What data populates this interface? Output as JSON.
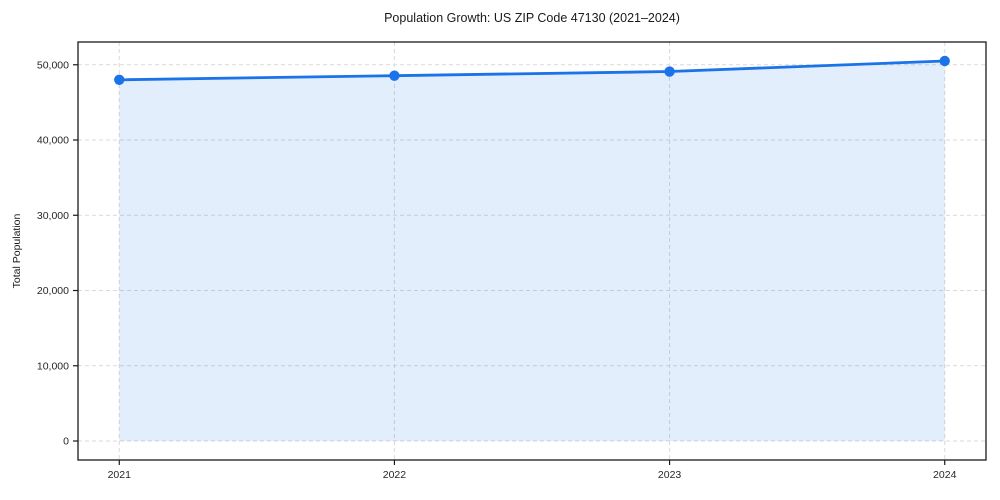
{
  "chart": {
    "title": "Population Growth: US ZIP Code 47130 (2021–2024)",
    "ylabel": "Total Population"
  },
  "chart_data": {
    "type": "line",
    "title": "Population Growth: US ZIP Code 47130 (2021–2024)",
    "xlabel": "",
    "ylabel": "Total Population",
    "categories": [
      "2021",
      "2022",
      "2023",
      "2024"
    ],
    "x": [
      2021,
      2022,
      2023,
      2024
    ],
    "series": [
      {
        "name": "Total Population",
        "values": [
          48000,
          48550,
          49100,
          50500
        ]
      }
    ],
    "xlim": [
      2020.85,
      2024.15
    ],
    "ylim": [
      -2525,
      53025
    ],
    "yticks": [
      0,
      10000,
      20000,
      30000,
      40000,
      50000
    ],
    "ytick_labels": [
      "0",
      "10,000",
      "20,000",
      "30,000",
      "40,000",
      "50,000"
    ],
    "grid": true,
    "grid_style": "dashed",
    "legend": false,
    "marker": "circle",
    "line_color": "#1a73e8",
    "fill_color": "rgba(26,115,232,0.12)",
    "area_to_zero": true,
    "grid_color": "#d9d9d9",
    "axis_color": "#1a1a1a",
    "text_color": "#262626"
  }
}
